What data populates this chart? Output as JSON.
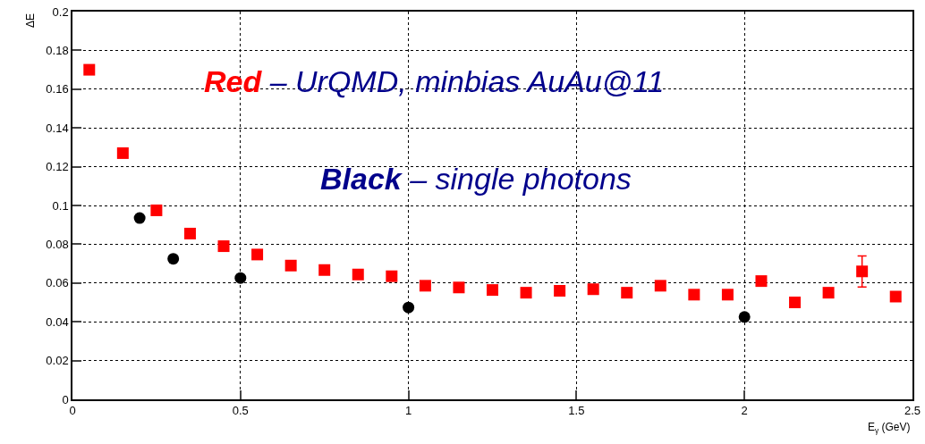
{
  "chart_data": {
    "type": "scatter",
    "xlabel": "E$_{γ}$ (GeV)",
    "ylabel": "ΔE",
    "annotations": [
      "Red – UrQMD, minbias AuAu@11",
      "Black – single photons"
    ],
    "xlim": [
      0,
      2.5
    ],
    "xticks": [
      0,
      0.5,
      1,
      1.5,
      2,
      2.5
    ],
    "ylim": [
      0,
      0.2
    ],
    "yticks": [
      0,
      0.02,
      0.04,
      0.06,
      0.08,
      0.1,
      0.12,
      0.14,
      0.16,
      0.18,
      0.2
    ],
    "grid": true,
    "line_style": "dotted",
    "series": [
      {
        "color": "#ff0000",
        "marker": "square",
        "x": [
          0.05,
          0.15,
          0.25,
          0.35,
          0.45,
          0.55,
          0.65,
          0.75,
          0.85,
          0.95,
          1.05,
          1.15,
          1.25,
          1.35,
          1.45,
          1.55,
          1.65,
          1.75,
          1.85,
          1.95,
          2.05,
          2.15,
          2.25,
          2.35,
          2.45
        ],
        "values": [
          0.17,
          0.127,
          0.0975,
          0.0855,
          0.079,
          0.0747,
          0.069,
          0.0667,
          0.0644,
          0.0635,
          0.0586,
          0.0577,
          0.0564,
          0.055,
          0.056,
          0.0568,
          0.055,
          0.0586,
          0.054,
          0.054,
          0.061,
          0.05,
          0.055,
          0.066,
          0.053
        ],
        "errors": [
          null,
          null,
          null,
          null,
          null,
          null,
          null,
          null,
          null,
          null,
          null,
          null,
          null,
          null,
          null,
          null,
          null,
          null,
          null,
          null,
          null,
          null,
          null,
          0.008,
          null
        ]
      },
      {
        "color": "#000000",
        "marker": "circle",
        "x": [
          0.2,
          0.3,
          0.5,
          1.0,
          2.0
        ],
        "values": [
          0.0935,
          0.0725,
          0.0626,
          0.0474,
          0.0425
        ]
      }
    ]
  }
}
